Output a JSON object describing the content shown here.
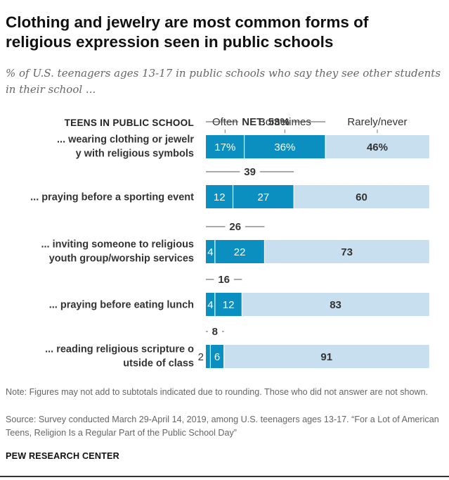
{
  "title": "Clothing and jewelry are most common forms of religious expression seen in public schools",
  "subtitle": "% of U.S. teenagers ages 13-17 in public schools who say they see other students in their school ...",
  "note": "Note: Figures may not add to subtotals indicated due to rounding. Those who did not answer are not shown.",
  "source": "Source: Survey conducted March 29-April 14, 2019, among U.S. teenagers ages 13-17. “For a Lot of American Teens, Religion Is a Regular Part of the Public School Day”",
  "brand": "PEW RESEARCH CENTER",
  "chart_data": {
    "type": "bar",
    "orientation": "horizontal",
    "stacked": true,
    "row_header": "TEENS IN PUBLIC SCHOOL",
    "categories": [
      "... wearing clothing or jewelry with religious symbols",
      "... praying before a sporting event",
      "... inviting someone to religious youth group/worship services",
      "... praying before eating lunch",
      "... reading religious scripture outside of class"
    ],
    "series": [
      {
        "name": "Often",
        "values": [
          17,
          12,
          4,
          4,
          2
        ],
        "color": "#0b8fc1"
      },
      {
        "name": "Sometimes",
        "values": [
          36,
          27,
          22,
          12,
          6
        ],
        "color": "#0b8fc1"
      },
      {
        "name": "Rarely/never",
        "values": [
          46,
          60,
          73,
          83,
          91
        ],
        "color": "#c7dfef"
      }
    ],
    "net": {
      "name": "NET",
      "values": [
        53,
        39,
        26,
        16,
        8
      ]
    },
    "value_labels": [
      [
        "17%",
        "36%",
        "46%"
      ],
      [
        "12",
        "27",
        "60"
      ],
      [
        "4",
        "22",
        "73"
      ],
      [
        "4",
        "12",
        "83"
      ],
      [
        "2",
        "6",
        "91"
      ]
    ],
    "net_labels": [
      "NET: 53%",
      "39",
      "26",
      "16",
      "8"
    ],
    "xlim": [
      0,
      100
    ]
  }
}
